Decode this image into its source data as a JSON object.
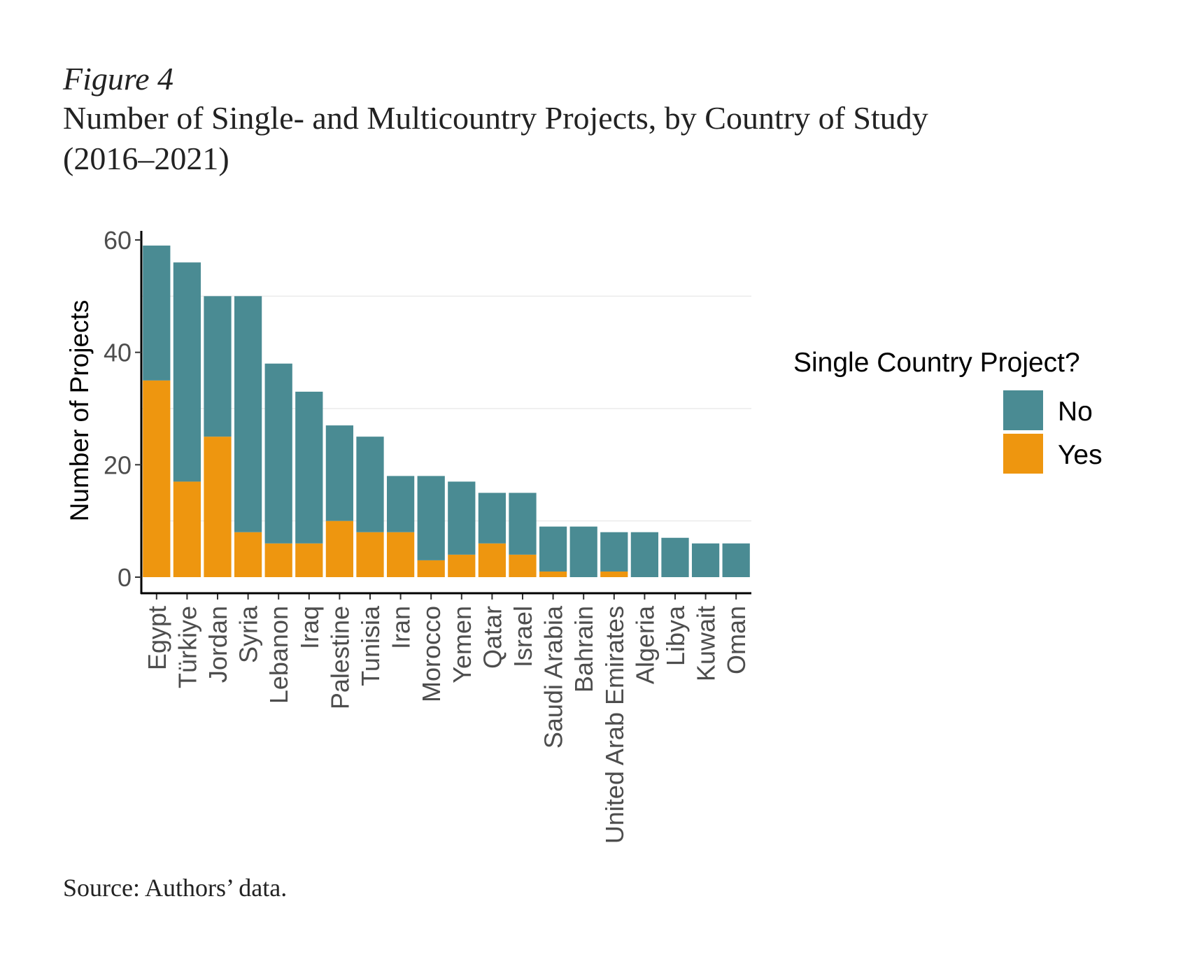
{
  "figure": {
    "label": "Figure 4",
    "title_line1": "Number of Single- and Multicountry Projects, by Country of Study",
    "title_line2": "(2016–2021)",
    "source": "Source: Authors’ data."
  },
  "colors": {
    "no": "#4a8b93",
    "yes": "#ee960f",
    "grid": "#ebebeb",
    "axis": "#000000"
  },
  "chart_data": {
    "type": "bar",
    "stacked": true,
    "ylabel": "Number of Projects",
    "xlabel": "",
    "ylim": [
      0,
      60
    ],
    "yticks": [
      0,
      20,
      40,
      60
    ],
    "categories": [
      "Egypt",
      "Türkiye",
      "Jordan",
      "Syria",
      "Lebanon",
      "Iraq",
      "Palestine",
      "Tunisia",
      "Iran",
      "Morocco",
      "Yemen",
      "Qatar",
      "Israel",
      "Saudi Arabia",
      "Bahrain",
      "United Arab Emirates",
      "Algeria",
      "Libya",
      "Kuwait",
      "Oman"
    ],
    "series": [
      {
        "name": "Yes",
        "values": [
          35,
          17,
          25,
          8,
          6,
          6,
          10,
          8,
          8,
          3,
          4,
          6,
          4,
          1,
          0,
          1,
          0,
          0,
          0,
          0
        ]
      },
      {
        "name": "No",
        "values": [
          24,
          39,
          25,
          42,
          32,
          27,
          17,
          17,
          10,
          15,
          13,
          9,
          11,
          8,
          9,
          7,
          8,
          7,
          6,
          6
        ]
      }
    ],
    "legend": {
      "title": "Single Country Project?",
      "entries": [
        "No",
        "Yes"
      ],
      "position": "right"
    }
  }
}
